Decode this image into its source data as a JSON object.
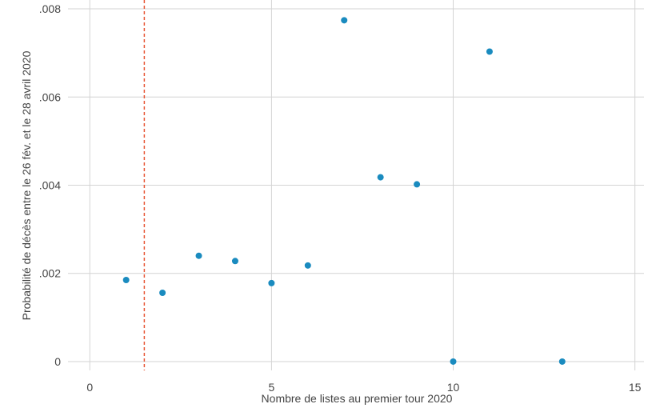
{
  "chart_data": {
    "type": "scatter",
    "title": "",
    "xlabel": "Nombre de listes au premier tour 2020",
    "ylabel": "Probabilité de décès entre le 26 fév. et le 28 avril 2020",
    "xlim": [
      -0.6,
      15.25
    ],
    "ylim": [
      -0.0002,
      0.0082
    ],
    "x_ticks": [
      0,
      5,
      10,
      15
    ],
    "x_tick_labels": [
      "0",
      "5",
      "10",
      "15"
    ],
    "y_ticks": [
      0,
      0.002,
      0.004,
      0.006,
      0.008
    ],
    "y_tick_labels": [
      "0",
      ".002",
      ".004",
      ".006",
      ".008"
    ],
    "grid": true,
    "reference_line_x": 1.5,
    "series": [
      {
        "color": "#1a8bbf",
        "points": [
          {
            "x": 1,
            "y": 0.00185
          },
          {
            "x": 2,
            "y": 0.00156
          },
          {
            "x": 3,
            "y": 0.0024
          },
          {
            "x": 4,
            "y": 0.00228
          },
          {
            "x": 5,
            "y": 0.00178
          },
          {
            "x": 6,
            "y": 0.00218
          },
          {
            "x": 7,
            "y": 0.00774
          },
          {
            "x": 8,
            "y": 0.00418
          },
          {
            "x": 9,
            "y": 0.00402
          },
          {
            "x": 10,
            "y": 0.0
          },
          {
            "x": 11,
            "y": 0.00703
          },
          {
            "x": 13,
            "y": 0.0
          }
        ]
      }
    ],
    "colors": {
      "points": "#1a8bbf",
      "reference_line": "#e8593a",
      "grid": "#d3d3d3",
      "text": "#444444"
    }
  }
}
